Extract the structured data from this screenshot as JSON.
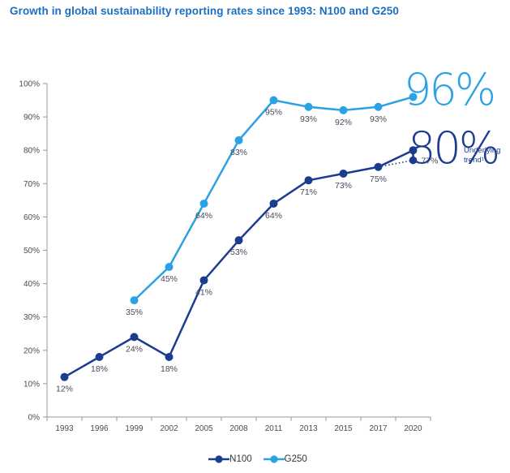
{
  "title": "Growth in global sustainability reporting rates since 1993: N100 and G250",
  "colors": {
    "title": "#1A6FC4",
    "n100": "#1C3C90",
    "g250": "#2BA2E4",
    "axis": "#999999",
    "tick_label": "#4A4A55",
    "data_label": "#4A4A5E"
  },
  "chart_data": {
    "type": "line",
    "title": "Growth in global sustainability reporting rates since 1993: N100 and G250",
    "categories": [
      "1993",
      "1996",
      "1999",
      "2002",
      "2005",
      "2008",
      "2011",
      "2013",
      "2015",
      "2017",
      "2020"
    ],
    "y_ticks": [
      "0%",
      "10%",
      "20%",
      "30%",
      "40%",
      "50%",
      "60%",
      "70%",
      "80%",
      "90%",
      "100%"
    ],
    "ylim": [
      0,
      100
    ],
    "grid": false,
    "legend_position": "bottom",
    "series": [
      {
        "name": "N100",
        "color_key": "n100",
        "values": [
          12,
          18,
          24,
          18,
          41,
          53,
          64,
          71,
          73,
          75,
          80
        ],
        "point_labels": [
          "12%",
          "18%",
          "24%",
          "18%",
          "41%",
          "53%",
          "64%",
          "71%",
          "73%",
          "75%",
          null
        ]
      },
      {
        "name": "G250",
        "color_key": "g250",
        "values": [
          null,
          null,
          35,
          45,
          64,
          83,
          95,
          93,
          92,
          93,
          96
        ],
        "point_labels": [
          null,
          null,
          "35%",
          "45%",
          "64%",
          "83%",
          "95%",
          "93%",
          "92%",
          "93%",
          null
        ]
      }
    ],
    "trend": {
      "series": "N100",
      "from_category": "2017",
      "from_value": 75,
      "to_category": "2020",
      "to_value": 77,
      "label": "77%",
      "style": "dotted"
    },
    "annotations": [
      {
        "text": "96%",
        "color_key": "g250"
      },
      {
        "text": "80%",
        "color_key": "n100"
      },
      {
        "text": "Underlying trend¹",
        "color_key": "n100"
      }
    ]
  },
  "legend": {
    "items": [
      {
        "label": "N100",
        "color_key": "n100"
      },
      {
        "label": "G250",
        "color_key": "g250"
      }
    ]
  }
}
